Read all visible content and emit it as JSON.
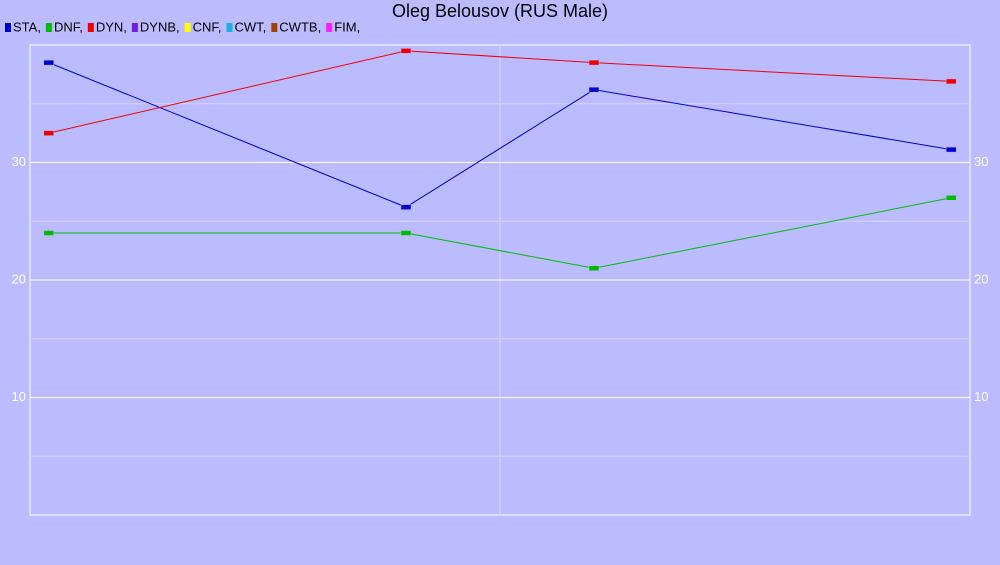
{
  "chart_data": {
    "type": "line",
    "title": "Oleg Belousov (RUS Male)",
    "x": [
      2,
      40,
      60,
      98
    ],
    "xlim": [
      0,
      100
    ],
    "ylim": [
      0,
      40
    ],
    "yticks": [
      10,
      20,
      30
    ],
    "grid": true,
    "series": [
      {
        "name": "STA,",
        "color": "#0000cc",
        "values": [
          38.5,
          26.2,
          36.2,
          31.1
        ]
      },
      {
        "name": "DNF,",
        "color": "#00bb00",
        "values": [
          24.0,
          24.0,
          21.0,
          27.0
        ]
      },
      {
        "name": "DYN,",
        "color": "#ee0000",
        "values": [
          32.5,
          39.5,
          38.5,
          36.9
        ]
      },
      {
        "name": "DYNB,",
        "color": "#7020e0",
        "values": [
          null,
          null,
          null,
          null
        ]
      },
      {
        "name": "CNF,",
        "color": "#ffff00",
        "values": [
          null,
          null,
          null,
          null
        ]
      },
      {
        "name": "CWT,",
        "color": "#20b0e0",
        "values": [
          null,
          null,
          null,
          null
        ]
      },
      {
        "name": "CWTB,",
        "color": "#a04000",
        "values": [
          null,
          null,
          null,
          null
        ]
      },
      {
        "name": "FIM,",
        "color": "#ff20ff",
        "values": [
          null,
          null,
          null,
          null
        ]
      }
    ]
  }
}
